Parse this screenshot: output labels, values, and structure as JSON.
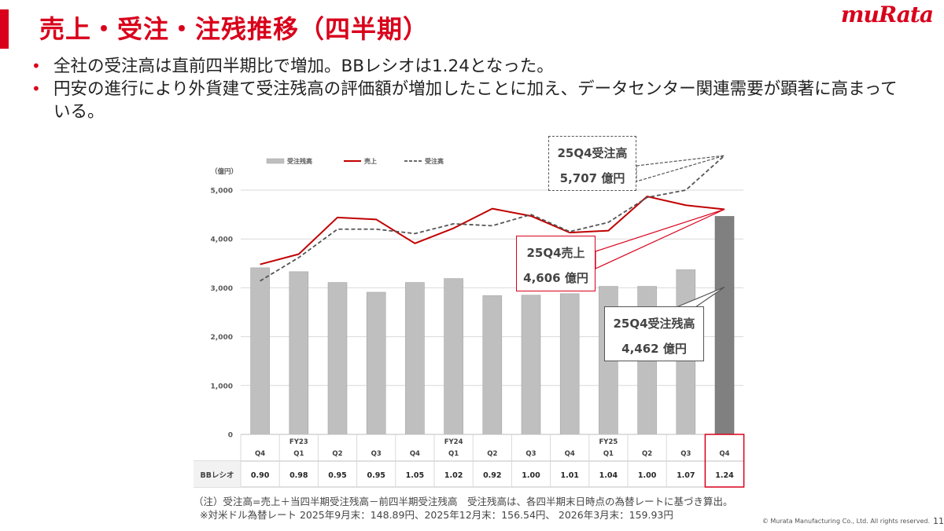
{
  "header": {
    "title": "売上・受注・注残推移（四半期）",
    "logo": "muRata"
  },
  "bullets": [
    "全社の受注高は直前四半期比で増加。BBレシオは1.24となった。",
    "円安の進行により外貨建て受注残高の評価額が増加したことに加え、データセンター関連需要が顕著に高まっている。"
  ],
  "chart_data": {
    "type": "bar",
    "unit_label": "（億円）",
    "ylim": [
      0,
      5000
    ],
    "yticks": [
      0,
      1000,
      2000,
      3000,
      4000,
      5000
    ],
    "ytick_labels": [
      "0",
      "1,000",
      "2,000",
      "3,000",
      "4,000",
      "5,000"
    ],
    "grid": true,
    "legend_position": "top-left",
    "categories": [
      "Q4",
      "Q1",
      "Q2",
      "Q3",
      "Q4",
      "Q1",
      "Q2",
      "Q3",
      "Q4",
      "Q1",
      "Q2",
      "Q3",
      "Q4"
    ],
    "fy_labels": [
      "",
      "FY23",
      "",
      "",
      "",
      "FY24",
      "",
      "",
      "",
      "FY25",
      "",
      "",
      ""
    ],
    "series": [
      {
        "name": "受注残高",
        "kind": "bar",
        "color": "#bfbfbf",
        "highlight_color": "#808080",
        "values": [
          3410,
          3330,
          3110,
          2910,
          3110,
          3190,
          2840,
          2850,
          2880,
          3030,
          3030,
          3370,
          4462
        ]
      },
      {
        "name": "売上",
        "kind": "line",
        "color": "#c00000",
        "values": [
          3480,
          3690,
          4440,
          4400,
          3910,
          4220,
          4620,
          4470,
          4130,
          4170,
          4870,
          4690,
          4606
        ]
      },
      {
        "name": "受注高",
        "kind": "dashed-line",
        "color": "#555555",
        "values": [
          3140,
          3620,
          4200,
          4200,
          4110,
          4310,
          4270,
          4500,
          4150,
          4340,
          4850,
          5000,
          5707
        ]
      }
    ],
    "ratio_table": {
      "label": "BBレシオ",
      "values": [
        "0.90",
        "0.98",
        "0.95",
        "0.95",
        "1.05",
        "1.02",
        "0.92",
        "1.00",
        "1.01",
        "1.04",
        "1.00",
        "1.07",
        "1.24"
      ]
    },
    "annotations": [
      {
        "title": "25Q4受注高",
        "value": "5,707 億円"
      },
      {
        "title": "25Q4売上",
        "value": "4,606 億円"
      },
      {
        "title": "25Q4受注残高",
        "value": "4,462 億円"
      }
    ]
  },
  "footnote": {
    "line1": "（注）受注高=売上＋当四半期受注残高－前四半期受注残高　受注残高は、各四半期末日時点の為替レートに基づき算出。",
    "line2": "※対米ドル為替レート 2025年9月末：148.89円、2025年12月末：156.54円、 2026年3月末：159.93円"
  },
  "copyright": "© Murata Manufacturing Co., Ltd. All rights reserved.",
  "page_number": "11"
}
